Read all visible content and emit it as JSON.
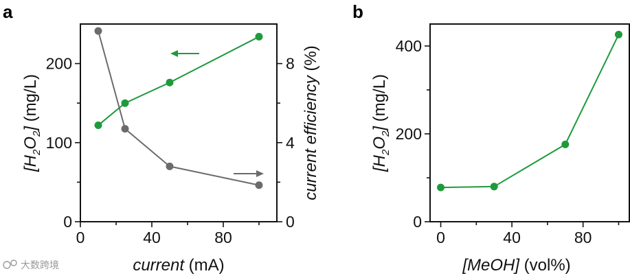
{
  "watermark": "大数跨境",
  "colors": {
    "green": "#1e9a3c",
    "gray": "#6b6b6b",
    "axis": "#111111"
  },
  "chart_data": [
    {
      "panel": "a",
      "type": "line",
      "x": [
        10,
        25,
        50,
        100
      ],
      "xlim": [
        0,
        110
      ],
      "xticks": [
        "0",
        "40",
        "80"
      ],
      "xtick_values": [
        0,
        40,
        80
      ],
      "xlabel_italic": "current",
      "xlabel_unit": " (mA)",
      "ylabel_left_prefix": "[H",
      "ylabel_left_sub1": "2",
      "ylabel_left_mid": "O",
      "ylabel_left_sub2": "2",
      "ylabel_left_suffix": "]",
      "ylabel_left_unit": " (mg/L)",
      "ylim_left": [
        0,
        250
      ],
      "yticks_left": [
        "0",
        "100",
        "200"
      ],
      "ytick_values_left": [
        0,
        100,
        200
      ],
      "ylabel_right_italic": "current efficiency",
      "ylabel_right_unit": " (%)",
      "ylim_right": [
        0,
        10
      ],
      "yticks_right": [
        "0",
        "4",
        "8"
      ],
      "ytick_values_right": [
        0,
        4,
        8
      ],
      "series": [
        {
          "name": "H2O2",
          "axis": "left",
          "color": "#1e9a3c",
          "values": [
            122,
            150,
            176,
            234
          ]
        },
        {
          "name": "current efficiency",
          "axis": "right",
          "color": "#6b6b6b",
          "values": [
            9.65,
            4.7,
            2.8,
            1.85
          ]
        }
      ]
    },
    {
      "panel": "b",
      "type": "line",
      "x": [
        0,
        30,
        70,
        100
      ],
      "xlim": [
        -6,
        106
      ],
      "xticks": [
        "0",
        "40",
        "80"
      ],
      "xtick_values": [
        0,
        40,
        80
      ],
      "xlabel_italic": "[MeOH]",
      "xlabel_unit": " (vol%)",
      "ylabel_prefix": "[H",
      "ylabel_sub1": "2",
      "ylabel_mid": "O",
      "ylabel_sub2": "2",
      "ylabel_suffix": "]",
      "ylabel_unit": " (mg/L)",
      "ylim": [
        0,
        450
      ],
      "yticks": [
        "0",
        "200",
        "400"
      ],
      "ytick_values": [
        0,
        200,
        400
      ],
      "series": [
        {
          "name": "H2O2",
          "color": "#1e9a3c",
          "values": [
            78,
            80,
            176,
            426
          ]
        }
      ]
    }
  ]
}
